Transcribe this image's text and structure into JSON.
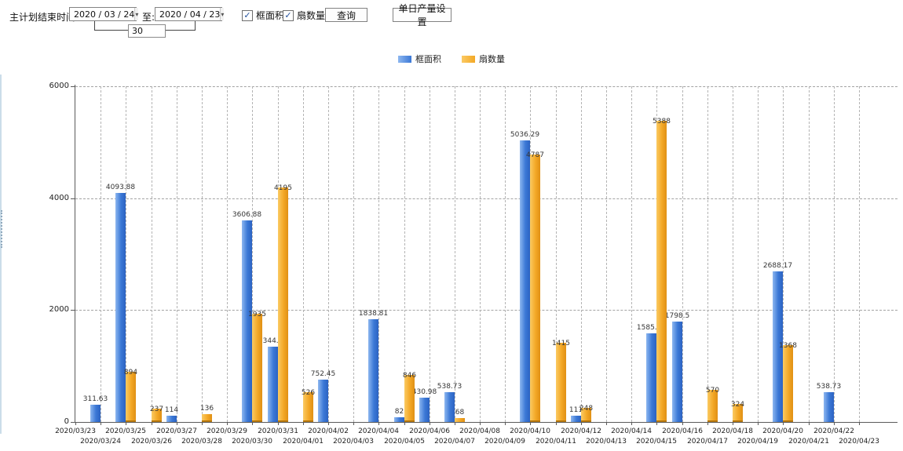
{
  "toolbar": {
    "label_plan_end": "主计划结束时间:",
    "date_from": "2020 / 03 / 24",
    "to_label": "至:",
    "date_to": "2020 / 04 / 23",
    "days_value": "30",
    "checkbox_frame": "框面积",
    "checkbox_fan": "扇数量",
    "query_button": "查询",
    "daily_output_button": "单日产量设置"
  },
  "icons": {
    "dropdown": "▾",
    "check": "✓"
  },
  "colors": {
    "series_blue": "#3b78d6",
    "series_orange": "#f3a826",
    "grid": "#a3a3a3",
    "axis": "#5a5a5a"
  },
  "chart_data": {
    "type": "bar",
    "title": "",
    "xlabel": "",
    "ylabel": "",
    "ylim": [
      0,
      6000
    ],
    "yticks": [
      0,
      2000,
      4000,
      6000
    ],
    "grid": true,
    "legend_position": "top",
    "categories": [
      "2020/03/23",
      "2020/03/24",
      "2020/03/25",
      "2020/03/26",
      "2020/03/27",
      "2020/03/28",
      "2020/03/29",
      "2020/03/30",
      "2020/03/31",
      "2020/04/01",
      "2020/04/02",
      "2020/04/03",
      "2020/04/04",
      "2020/04/05",
      "2020/04/06",
      "2020/04/07",
      "2020/04/08",
      "2020/04/09",
      "2020/04/10",
      "2020/04/11",
      "2020/04/12",
      "2020/04/13",
      "2020/04/14",
      "2020/04/15",
      "2020/04/16",
      "2020/04/17",
      "2020/04/18",
      "2020/04/19",
      "2020/04/20",
      "2020/04/21",
      "2020/04/22",
      "2020/04/23"
    ],
    "series": [
      {
        "name": "框面积",
        "color_light": "#8db7f0",
        "color": "#3b78d6",
        "color_dark": "#2c63c2",
        "values": [
          0,
          311.63,
          4093.88,
          0,
          114,
          0,
          0,
          3606.88,
          1344.95,
          0,
          752.45,
          0,
          1838.81,
          82,
          430.98,
          538.73,
          0,
          0,
          5036.29,
          0,
          111,
          0,
          0,
          1585.96,
          1798.5,
          0,
          0,
          0,
          2688.17,
          0,
          538.73,
          0
        ]
      },
      {
        "name": "扇数量",
        "color_light": "#fbca63",
        "color": "#f3a826",
        "color_dark": "#e09015",
        "values": [
          0,
          0,
          894,
          237,
          0,
          136,
          0,
          1935,
          4195,
          526,
          0,
          0,
          0,
          846,
          0,
          68,
          0,
          0,
          4787,
          1415,
          248,
          0,
          0,
          5388,
          0,
          570,
          324,
          0,
          1368,
          0,
          0,
          0
        ]
      }
    ]
  }
}
